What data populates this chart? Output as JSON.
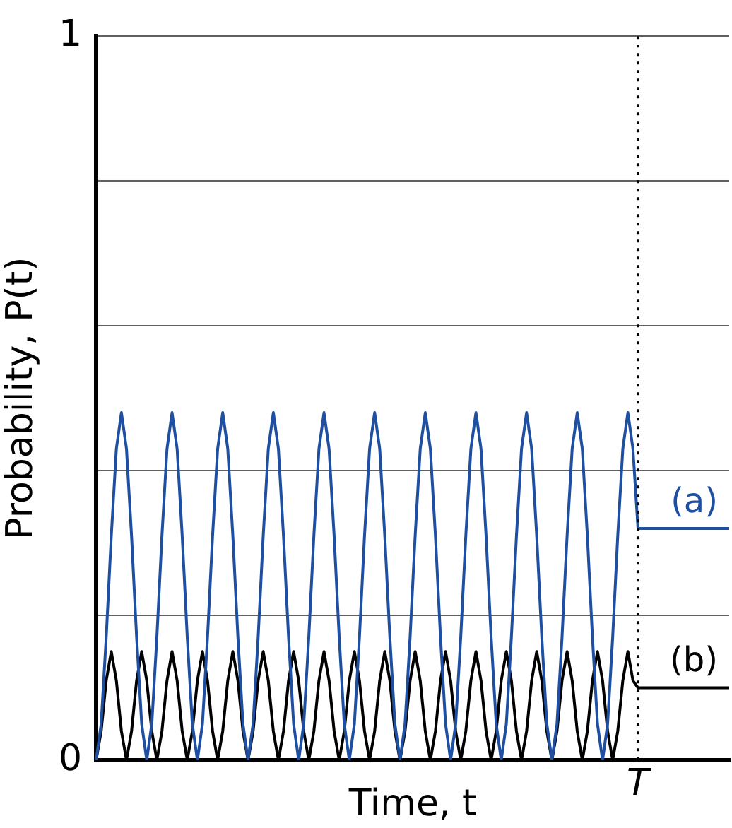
{
  "chart_data": {
    "type": "line",
    "xlabel": "Time, t",
    "ylabel": "Probability, P(t)",
    "categories": [
      null,
      null,
      null,
      null,
      null,
      null,
      null,
      null,
      null,
      null,
      null,
      null,
      null,
      null,
      null,
      null,
      null,
      null,
      null,
      null,
      null,
      null,
      null,
      null,
      null,
      null,
      null,
      null,
      null,
      null,
      null,
      null,
      null,
      null,
      null,
      null,
      null,
      null,
      null,
      null,
      null,
      null,
      null,
      null,
      null,
      null,
      null,
      null,
      null,
      null,
      null,
      null,
      null,
      null,
      null,
      null,
      null,
      null,
      null,
      null,
      null,
      null,
      null,
      null,
      null,
      null,
      null,
      null,
      null,
      null,
      null,
      null,
      null,
      null,
      null,
      null,
      null,
      null,
      null,
      null,
      null,
      null,
      null,
      null,
      null,
      null,
      null,
      null,
      null,
      null,
      null,
      null,
      null,
      null,
      null,
      null,
      null,
      null,
      null,
      null,
      null,
      null,
      null,
      null,
      null,
      null,
      null,
      "T",
      null,
      null,
      null,
      null,
      null,
      null,
      null,
      null,
      null,
      null,
      null,
      null,
      null,
      null,
      null,
      null,
      null,
      null
    ],
    "ylim": [
      0,
      1
    ],
    "yticks": [
      0,
      {
        "value": 0.2,
        "label": null
      },
      {
        "value": 0.4,
        "label": null
      },
      {
        "value": 0.6,
        "label": null
      },
      {
        "value": 0.8,
        "label": null
      },
      1
    ],
    "grid": "y",
    "legend": false,
    "marker": "none",
    "line_style": "solid",
    "ref_lines": [
      {
        "axis": "x",
        "value": "T",
        "line_style": "dotted",
        "color": "#000000"
      }
    ],
    "series": [
      {
        "name": "(a)",
        "color": "#1f4fa0",
        "values": [
          0,
          0.05,
          0.17,
          0.31,
          0.43,
          0.48,
          0.43,
          0.31,
          0.17,
          0.05,
          0,
          0.05,
          0.17,
          0.31,
          0.43,
          0.48,
          0.43,
          0.31,
          0.17,
          0.05,
          0,
          0.05,
          0.17,
          0.31,
          0.43,
          0.48,
          0.43,
          0.31,
          0.17,
          0.05,
          0,
          0.05,
          0.17,
          0.31,
          0.43,
          0.48,
          0.43,
          0.31,
          0.17,
          0.05,
          0,
          0.05,
          0.17,
          0.31,
          0.43,
          0.48,
          0.43,
          0.31,
          0.17,
          0.05,
          0,
          0.05,
          0.17,
          0.31,
          0.43,
          0.48,
          0.43,
          0.31,
          0.17,
          0.05,
          0,
          0.05,
          0.17,
          0.31,
          0.43,
          0.48,
          0.43,
          0.31,
          0.17,
          0.05,
          0,
          0.05,
          0.17,
          0.31,
          0.43,
          0.48,
          0.43,
          0.31,
          0.17,
          0.05,
          0,
          0.05,
          0.17,
          0.31,
          0.43,
          0.48,
          0.43,
          0.31,
          0.17,
          0.05,
          0,
          0.05,
          0.17,
          0.31,
          0.43,
          0.48,
          0.43,
          0.31,
          0.17,
          0.05,
          0,
          0.05,
          0.17,
          0.31,
          0.43,
          0.48,
          0.43,
          0.32,
          0.32,
          0.32,
          0.32,
          0.32,
          0.32,
          0.32,
          0.32,
          0.32,
          0.32,
          0.32,
          0.32,
          0.32,
          0.32,
          0.32,
          0.32,
          0.32,
          0.32,
          0.32
        ]
      },
      {
        "name": "(b)",
        "color": "#000000",
        "values": [
          0,
          0.04,
          0.11,
          0.15,
          0.11,
          0.04,
          0,
          0.04,
          0.11,
          0.15,
          0.11,
          0.04,
          0,
          0.04,
          0.11,
          0.15,
          0.11,
          0.04,
          0,
          0.04,
          0.11,
          0.15,
          0.11,
          0.04,
          0,
          0.04,
          0.11,
          0.15,
          0.11,
          0.04,
          0,
          0.04,
          0.11,
          0.15,
          0.11,
          0.04,
          0,
          0.04,
          0.11,
          0.15,
          0.11,
          0.04,
          0,
          0.04,
          0.11,
          0.15,
          0.11,
          0.04,
          0,
          0.04,
          0.11,
          0.15,
          0.11,
          0.04,
          0,
          0.04,
          0.11,
          0.15,
          0.11,
          0.04,
          0,
          0.04,
          0.11,
          0.15,
          0.11,
          0.04,
          0,
          0.04,
          0.11,
          0.15,
          0.11,
          0.04,
          0,
          0.04,
          0.11,
          0.15,
          0.11,
          0.04,
          0,
          0.04,
          0.11,
          0.15,
          0.11,
          0.04,
          0,
          0.04,
          0.11,
          0.15,
          0.11,
          0.04,
          0,
          0.04,
          0.11,
          0.15,
          0.11,
          0.04,
          0,
          0.04,
          0.11,
          0.15,
          0.11,
          0.04,
          0,
          0.04,
          0.11,
          0.15,
          0.11,
          0.1,
          0.1,
          0.1,
          0.1,
          0.1,
          0.1,
          0.1,
          0.1,
          0.1,
          0.1,
          0.1,
          0.1,
          0.1,
          0.1,
          0.1,
          0.1,
          0.1,
          0.1,
          0.1
        ]
      }
    ]
  }
}
